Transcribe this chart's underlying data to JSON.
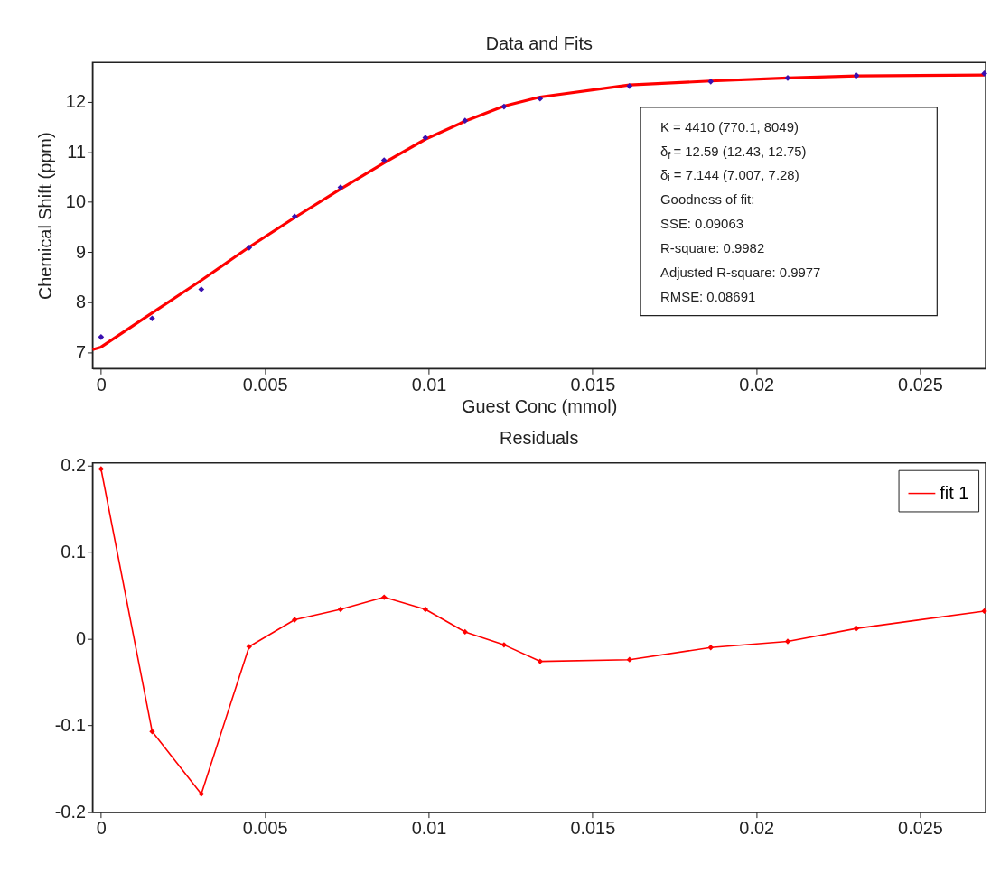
{
  "chart_data": [
    {
      "type": "scatter",
      "title": "Data and Fits",
      "xlabel": "Guest Conc (mmol)",
      "ylabel": "Chemical Shift (ppm)",
      "x": [
        0,
        0.00156,
        0.00306,
        0.00452,
        0.00591,
        0.00731,
        0.00864,
        0.0099,
        0.01111,
        0.0123,
        0.0134,
        0.01613,
        0.01861,
        0.02096,
        0.02306,
        0.02696
      ],
      "series": [
        {
          "type": "line",
          "color": "#ff0000",
          "marker": "none",
          "x": [
            -0.00026,
            0,
            0.00156,
            0.00306,
            0.00452,
            0.00591,
            0.00731,
            0.00864,
            0.0099,
            0.01111,
            0.0123,
            0.0134,
            0.01613,
            0.01861,
            0.02096,
            0.02306,
            0.02696
          ],
          "values": [
            7.06,
            7.11,
            7.79,
            8.44,
            9.1,
            9.69,
            10.26,
            10.78,
            11.25,
            11.61,
            11.91,
            12.09,
            12.33,
            12.41,
            12.47,
            12.51,
            12.53
          ]
        },
        {
          "type": "scatter",
          "color": "#3a10b0",
          "marker": "diamond",
          "values": [
            7.31,
            7.68,
            8.26,
            9.09,
            9.71,
            10.29,
            10.83,
            11.28,
            11.62,
            11.9,
            12.06,
            12.31,
            12.4,
            12.47,
            12.52,
            12.56
          ]
        }
      ],
      "xlim": [
        -0.00026,
        0.027
      ],
      "xticks": [
        0,
        0.005,
        0.01,
        0.015,
        0.02,
        0.025
      ],
      "ylim": [
        6.68,
        12.78
      ],
      "yticks": [
        7,
        8,
        9,
        10,
        11,
        12
      ],
      "grid": false,
      "legend": false,
      "annotations": [
        "K =       4410  (770.1, 8049)",
        "δ$_{f}$ =      12.59  (12.43, 12.75)",
        "δᵢ =      7.144  (7.007, 7.28)",
        "Goodness of fit:",
        "SSE: 0.09063",
        "R-square: 0.9982",
        "Adjusted R-square: 0.9977",
        "RMSE: 0.08691"
      ]
    },
    {
      "type": "line",
      "title": "Residuals",
      "x": [
        0,
        0.00156,
        0.00306,
        0.00452,
        0.00591,
        0.00731,
        0.00864,
        0.0099,
        0.01111,
        0.0123,
        0.0134,
        0.01613,
        0.01861,
        0.02096,
        0.02306,
        0.02696
      ],
      "series": [
        {
          "name": "fit 1",
          "color": "#ff0000",
          "marker": "diamond",
          "values": [
            0.196,
            -0.107,
            -0.179,
            -0.009,
            0.022,
            0.034,
            0.048,
            0.034,
            0.008,
            -0.007,
            -0.026,
            -0.024,
            -0.01,
            -0.003,
            0.012,
            0.032
          ]
        }
      ],
      "xlim": [
        -0.00026,
        0.027
      ],
      "xticks": [
        0,
        0.005,
        0.01,
        0.015,
        0.02,
        0.025
      ],
      "ylim": [
        -0.2,
        0.203
      ],
      "yticks": [
        -0.2,
        -0.1,
        0,
        0.1,
        0.2
      ],
      "grid": false,
      "legend": "top right"
    }
  ]
}
